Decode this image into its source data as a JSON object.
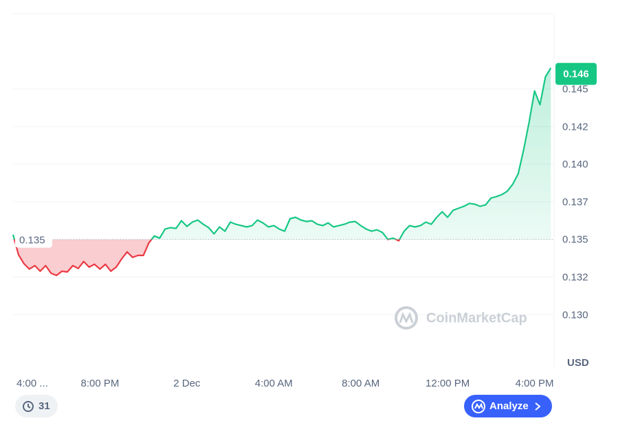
{
  "chart_data": {
    "type": "line",
    "currency": "USD",
    "watermark": "CoinMarketCap",
    "series": [
      {
        "color": "#16c784",
        "below_color": "#ea3943",
        "values": [
          0.13532,
          0.13399,
          0.13339,
          0.13303,
          0.13326,
          0.13289,
          0.13326,
          0.13275,
          0.13261,
          0.13289,
          0.13284,
          0.13326,
          0.13307,
          0.13353,
          0.13316,
          0.13335,
          0.13303,
          0.13335,
          0.13289,
          0.13316,
          0.13371,
          0.13417,
          0.13381,
          0.13394,
          0.13394,
          0.13477,
          0.13523,
          0.13509,
          0.13569,
          0.13578,
          0.13573,
          0.13624,
          0.13587,
          0.13615,
          0.13629,
          0.13601,
          0.13578,
          0.13537,
          0.13583,
          0.13555,
          0.13615,
          0.13601,
          0.13592,
          0.13583,
          0.13592,
          0.13629,
          0.1361,
          0.13583,
          0.13592,
          0.13569,
          0.13555,
          0.13638,
          0.13647,
          0.13629,
          0.13619,
          0.13624,
          0.13601,
          0.13592,
          0.1361,
          0.13583,
          0.13592,
          0.13601,
          0.13615,
          0.13619,
          0.13592,
          0.13569,
          0.13555,
          0.13564,
          0.13546,
          0.135,
          0.13509,
          0.13491,
          0.13555,
          0.13592,
          0.13583,
          0.13592,
          0.13615,
          0.13601,
          0.13647,
          0.13684,
          0.13647,
          0.13693,
          0.13707,
          0.1372,
          0.13739,
          0.13734,
          0.1372,
          0.1373,
          0.13775,
          0.13785,
          0.13798,
          0.13821,
          0.13867,
          0.13936,
          0.14097,
          0.1428,
          0.14487,
          0.14395,
          0.1458,
          0.1464
        ]
      }
    ],
    "reference": 0.135,
    "last_price": 0.146,
    "xlim": [
      0,
      99.6
    ],
    "xticks": [
      {
        "value": 0,
        "label": "4:00 ..."
      },
      {
        "value": 16,
        "label": "8:00 PM"
      },
      {
        "value": 32,
        "label": "2 Dec"
      },
      {
        "value": 48,
        "label": "4:00 AM"
      },
      {
        "value": 64,
        "label": "8:00 AM"
      },
      {
        "value": 80,
        "label": "12:00 PM"
      },
      {
        "value": 96,
        "label": "4:00 PM"
      }
    ],
    "ylim": [
      0.1265,
      0.15
    ],
    "yticks": [
      {
        "value": 0.13,
        "label": "0.130"
      },
      {
        "value": 0.1325,
        "label": "0.132"
      },
      0.135,
      {
        "value": 0.1375,
        "label": "0.137"
      },
      {
        "value": 0.14,
        "label": "0.140"
      },
      {
        "value": 0.1425,
        "label": "0.142"
      },
      0.145
    ],
    "grid": true
  },
  "controls": {
    "history_count": "31",
    "analyze": "Analyze"
  }
}
